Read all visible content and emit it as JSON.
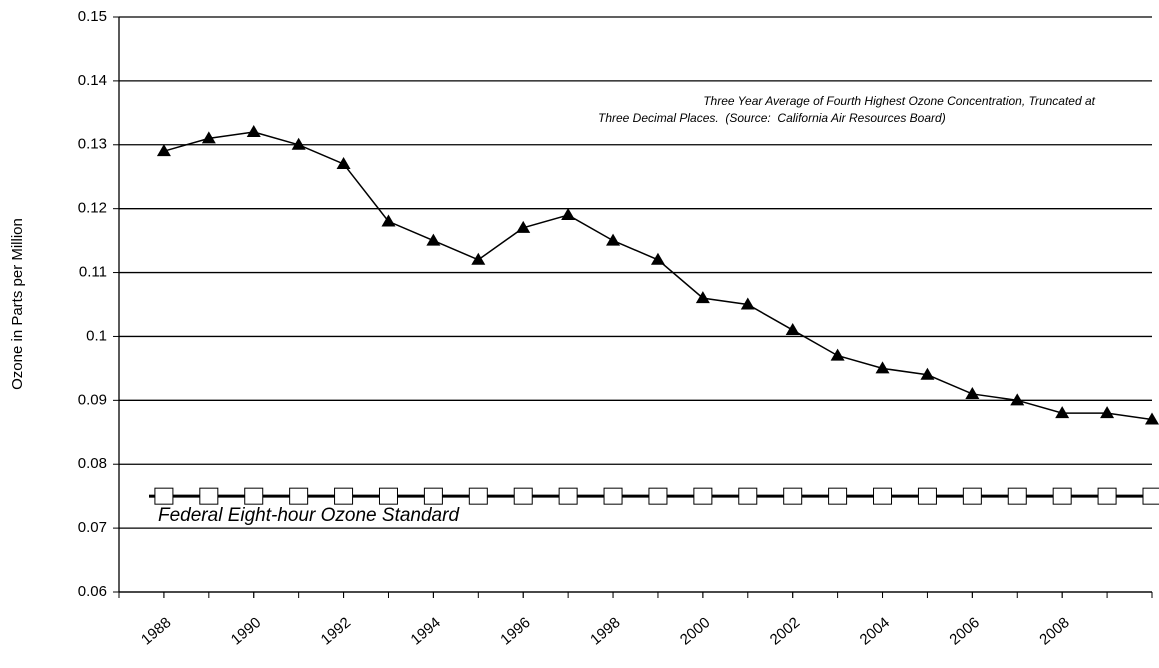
{
  "chart_data": {
    "type": "line",
    "y_label": "Ozone in Parts per Million",
    "annotation": [
      "Three Year Average of Fourth Highest Ozone Concentration, Truncated at",
      "Three Decimal Places.  (Source:  California Air Resources Board)"
    ],
    "x": [
      1988,
      1989,
      1990,
      1991,
      1992,
      1993,
      1994,
      1995,
      1996,
      1997,
      1998,
      1999,
      2000,
      2001,
      2002,
      2003,
      2004,
      2005,
      2006,
      2007,
      2008,
      2009,
      2010
    ],
    "series": [
      {
        "color": "#000000",
        "marker": "triangle",
        "values": [
          0.129,
          0.131,
          0.132,
          0.13,
          0.127,
          0.118,
          0.115,
          0.112,
          0.117,
          0.119,
          0.115,
          0.112,
          0.106,
          0.105,
          0.101,
          0.097,
          0.095,
          0.094,
          0.091,
          0.09,
          0.088,
          0.088,
          0.087
        ]
      },
      {
        "name": "Federal Eight-hour Ozone Standard",
        "color": "#000000",
        "marker": "square",
        "values": [
          0.075,
          0.075,
          0.075,
          0.075,
          0.075,
          0.075,
          0.075,
          0.075,
          0.075,
          0.075,
          0.075,
          0.075,
          0.075,
          0.075,
          0.075,
          0.075,
          0.075,
          0.075,
          0.075,
          0.075,
          0.075,
          0.075,
          0.075
        ]
      }
    ],
    "xlim": [
      1987,
      2010
    ],
    "xticks": [
      1988,
      1990,
      1992,
      1994,
      1996,
      1998,
      2000,
      2002,
      2004,
      2006,
      2008
    ],
    "ylim": [
      0.06,
      0.15
    ],
    "yticks": [
      0.06,
      0.07,
      0.08,
      0.09,
      0.1,
      0.11,
      0.12,
      0.13,
      0.14,
      0.15
    ],
    "grid": true
  }
}
